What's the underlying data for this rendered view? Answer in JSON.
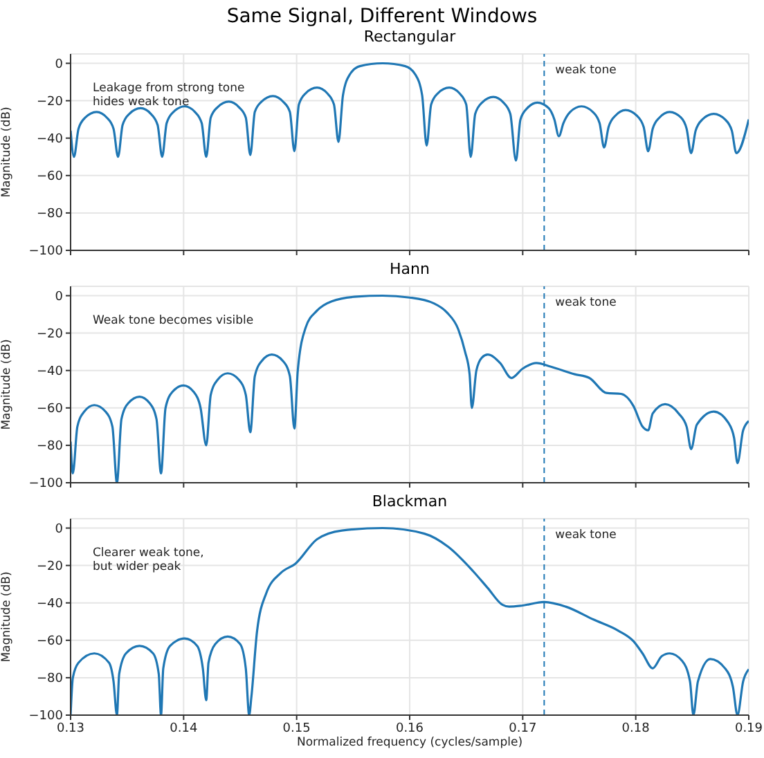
{
  "chart_data": [
    {
      "type": "line",
      "title": "Same Signal, Different Windows",
      "subtitle": "Rectangular",
      "ylabel": "Magnitude (dB)",
      "xlim": [
        0.13,
        0.19
      ],
      "ylim": [
        -100,
        5
      ],
      "xticks": [
        0.13,
        0.14,
        0.15,
        0.16,
        0.17,
        0.18,
        0.19
      ],
      "yticks": [
        {
          "value": -100,
          "label": "−100"
        },
        {
          "value": -80,
          "label": "−80"
        },
        {
          "value": -60,
          "label": "−60"
        },
        {
          "value": -40,
          "label": "−40"
        },
        {
          "value": -20,
          "label": "−20"
        },
        {
          "value": 0,
          "label": "0"
        }
      ],
      "tick_labels": "y",
      "grid": true,
      "series": [
        {
          "color": "#1f77b4",
          "x": [
            0.13,
            0.1303,
            0.1307,
            0.1313,
            0.1323,
            0.1332,
            0.1338,
            0.1342,
            0.1346,
            0.1352,
            0.1362,
            0.1371,
            0.1377,
            0.1381,
            0.1385,
            0.1391,
            0.1401,
            0.141,
            0.1416,
            0.142,
            0.1424,
            0.143,
            0.144,
            0.1449,
            0.1455,
            0.1459,
            0.1463,
            0.1469,
            0.1479,
            0.1488,
            0.1494,
            0.1498,
            0.1502,
            0.1508,
            0.1518,
            0.1527,
            0.1533,
            0.1537,
            0.1541,
            0.1547,
            0.1556,
            0.1576,
            0.1596,
            0.1605,
            0.1611,
            0.1615,
            0.1619,
            0.1625,
            0.1635,
            0.1644,
            0.165,
            0.1654,
            0.1658,
            0.1664,
            0.1674,
            0.1683,
            0.1689,
            0.1694,
            0.1698,
            0.1704,
            0.1713,
            0.1723,
            0.1728,
            0.1732,
            0.1736,
            0.1742,
            0.1752,
            0.1762,
            0.1768,
            0.1772,
            0.1776,
            0.1782,
            0.1791,
            0.1801,
            0.1807,
            0.1811,
            0.1815,
            0.1821,
            0.183,
            0.184,
            0.1845,
            0.1849,
            0.1853,
            0.1859,
            0.1869,
            0.1879,
            0.1885,
            0.1889,
            0.19
          ],
          "values": [
            -36,
            -50,
            -35,
            -29,
            -26,
            -29,
            -35,
            -50,
            -33,
            -27,
            -24,
            -27,
            -33,
            -50,
            -32,
            -26,
            -23,
            -26,
            -32,
            -50,
            -29,
            -23.5,
            -20.5,
            -23.5,
            -29,
            -49,
            -26,
            -20.5,
            -17.5,
            -20.5,
            -26,
            -47,
            -22,
            -16,
            -13,
            -16,
            -22,
            -42,
            -17,
            -6,
            -1.5,
            0,
            -1.5,
            -6,
            -17,
            -44,
            -22,
            -16,
            -13,
            -16,
            -22,
            -50,
            -27,
            -21,
            -18,
            -21,
            -27,
            -52,
            -30,
            -24,
            -21,
            -24,
            -30,
            -39,
            -32,
            -26,
            -23,
            -26,
            -32,
            -45,
            -34,
            -28,
            -25,
            -28,
            -34,
            -47,
            -35,
            -29,
            -26,
            -29,
            -35,
            -48,
            -36,
            -30,
            -27,
            -30,
            -36,
            -48,
            -30
          ]
        }
      ],
      "ref_lines": [
        {
          "axis": "x",
          "value": 0.1719,
          "label": "weak tone",
          "color": "#1f77b4",
          "line_style": "dashed"
        }
      ],
      "annotations": [
        "Leakage from strong tone\nhides weak tone"
      ]
    },
    {
      "type": "line",
      "title": "Hann",
      "ylabel": "Magnitude (dB)",
      "xlim": [
        0.13,
        0.19
      ],
      "ylim": [
        -100,
        5
      ],
      "xticks": [
        0.13,
        0.14,
        0.15,
        0.16,
        0.17,
        0.18,
        0.19
      ],
      "yticks": [
        {
          "value": -100,
          "label": "−100"
        },
        {
          "value": -80,
          "label": "−80"
        },
        {
          "value": -60,
          "label": "−60"
        },
        {
          "value": -40,
          "label": "−40"
        },
        {
          "value": -20,
          "label": "−20"
        },
        {
          "value": 0,
          "label": "0"
        }
      ],
      "tick_labels": "y",
      "grid": true,
      "series": [
        {
          "color": "#1f77b4",
          "x": [
            0.13,
            0.1302,
            0.1306,
            0.1312,
            0.1321,
            0.1331,
            0.1337,
            0.1341,
            0.1345,
            0.1351,
            0.1361,
            0.137,
            0.1376,
            0.138,
            0.1384,
            0.139,
            0.14,
            0.1409,
            0.1415,
            0.142,
            0.1424,
            0.143,
            0.1439,
            0.1449,
            0.1455,
            0.1459,
            0.1463,
            0.1469,
            0.1478,
            0.1488,
            0.1494,
            0.1498,
            0.1501,
            0.1508,
            0.1518,
            0.1531,
            0.1553,
            0.1576,
            0.16,
            0.1621,
            0.1633,
            0.1643,
            0.1649,
            0.1653,
            0.1655,
            0.1659,
            0.1664,
            0.1669,
            0.168,
            0.169,
            0.17,
            0.1712,
            0.1725,
            0.1746,
            0.1759,
            0.1774,
            0.1787,
            0.1798,
            0.1806,
            0.1811,
            0.1815,
            0.1826,
            0.1838,
            0.1845,
            0.1849,
            0.1854,
            0.1869,
            0.1882,
            0.1887,
            0.189,
            0.1895,
            0.19
          ],
          "values": [
            -78,
            -95,
            -70,
            -62,
            -58.5,
            -62,
            -70,
            -100,
            -66,
            -57.5,
            -54,
            -57.5,
            -66,
            -95,
            -60,
            -51.5,
            -48,
            -51.5,
            -60,
            -80,
            -53,
            -45,
            -41.5,
            -45,
            -53,
            -73,
            -43,
            -35,
            -31.5,
            -35,
            -43,
            -71,
            -40,
            -17,
            -8,
            -3,
            -0.5,
            0,
            -1,
            -4,
            -9,
            -18,
            -30,
            -42,
            -60,
            -40,
            -33,
            -31.5,
            -36,
            -44,
            -39,
            -36,
            -38,
            -42,
            -44,
            -52,
            -52.5,
            -59,
            -70,
            -72,
            -63,
            -58,
            -63,
            -70,
            -82,
            -69,
            -62,
            -68,
            -76,
            -89.5,
            -72,
            -67
          ]
        }
      ],
      "ref_lines": [
        {
          "axis": "x",
          "value": 0.1719,
          "label": "weak tone",
          "color": "#1f77b4",
          "line_style": "dashed"
        }
      ],
      "annotations": [
        "Weak tone becomes visible"
      ]
    },
    {
      "type": "line",
      "title": "Blackman",
      "xlabel": "Normalized frequency (cycles/sample)",
      "ylabel": "Magnitude (dB)",
      "xlim": [
        0.13,
        0.19
      ],
      "ylim": [
        -100,
        5
      ],
      "xticks": [
        0.13,
        0.14,
        0.15,
        0.16,
        0.17,
        0.18,
        0.19
      ],
      "yticks": [
        {
          "value": -100,
          "label": "−100"
        },
        {
          "value": -80,
          "label": "−80"
        },
        {
          "value": -60,
          "label": "−60"
        },
        {
          "value": -40,
          "label": "−40"
        },
        {
          "value": -20,
          "label": "−20"
        },
        {
          "value": 0,
          "label": "0"
        }
      ],
      "grid": true,
      "series": [
        {
          "color": "#1f77b4",
          "x": [
            0.13,
            0.1302,
            0.1307,
            0.1321,
            0.1334,
            0.1338,
            0.1341,
            0.1343,
            0.1349,
            0.1361,
            0.1373,
            0.1378,
            0.138,
            0.1382,
            0.1388,
            0.1401,
            0.1412,
            0.1417,
            0.142,
            0.1422,
            0.1428,
            0.1439,
            0.145,
            0.1455,
            0.1458,
            0.146,
            0.1465,
            0.1473,
            0.1486,
            0.1499,
            0.1518,
            0.154,
            0.1576,
            0.1613,
            0.1634,
            0.1656,
            0.1669,
            0.1682,
            0.1688,
            0.1699,
            0.1719,
            0.1738,
            0.1763,
            0.1785,
            0.1798,
            0.1806,
            0.1815,
            0.1823,
            0.183,
            0.1841,
            0.1848,
            0.1851,
            0.1855,
            0.1866,
            0.1879,
            0.1886,
            0.189,
            0.1895,
            0.19
          ],
          "values": [
            -100,
            -80,
            -72,
            -67,
            -72,
            -82,
            -100,
            -78,
            -67,
            -63,
            -67,
            -78,
            -100,
            -75,
            -63,
            -59,
            -63,
            -75,
            -92,
            -72,
            -62,
            -58,
            -62,
            -75,
            -100,
            -90,
            -55,
            -35,
            -24,
            -19,
            -6,
            -1.3,
            0,
            -3,
            -10,
            -23,
            -32,
            -41,
            -42,
            -41.5,
            -39.5,
            -42,
            -49,
            -55,
            -60.5,
            -67,
            -75,
            -68.5,
            -67,
            -71,
            -82,
            -100,
            -82,
            -70,
            -75,
            -85,
            -100,
            -82,
            -75.5
          ]
        }
      ],
      "ref_lines": [
        {
          "axis": "x",
          "value": 0.1719,
          "label": "weak tone",
          "color": "#1f77b4",
          "line_style": "dashed"
        }
      ],
      "annotations": [
        "Clearer weak tone,\nbut wider peak"
      ]
    }
  ]
}
